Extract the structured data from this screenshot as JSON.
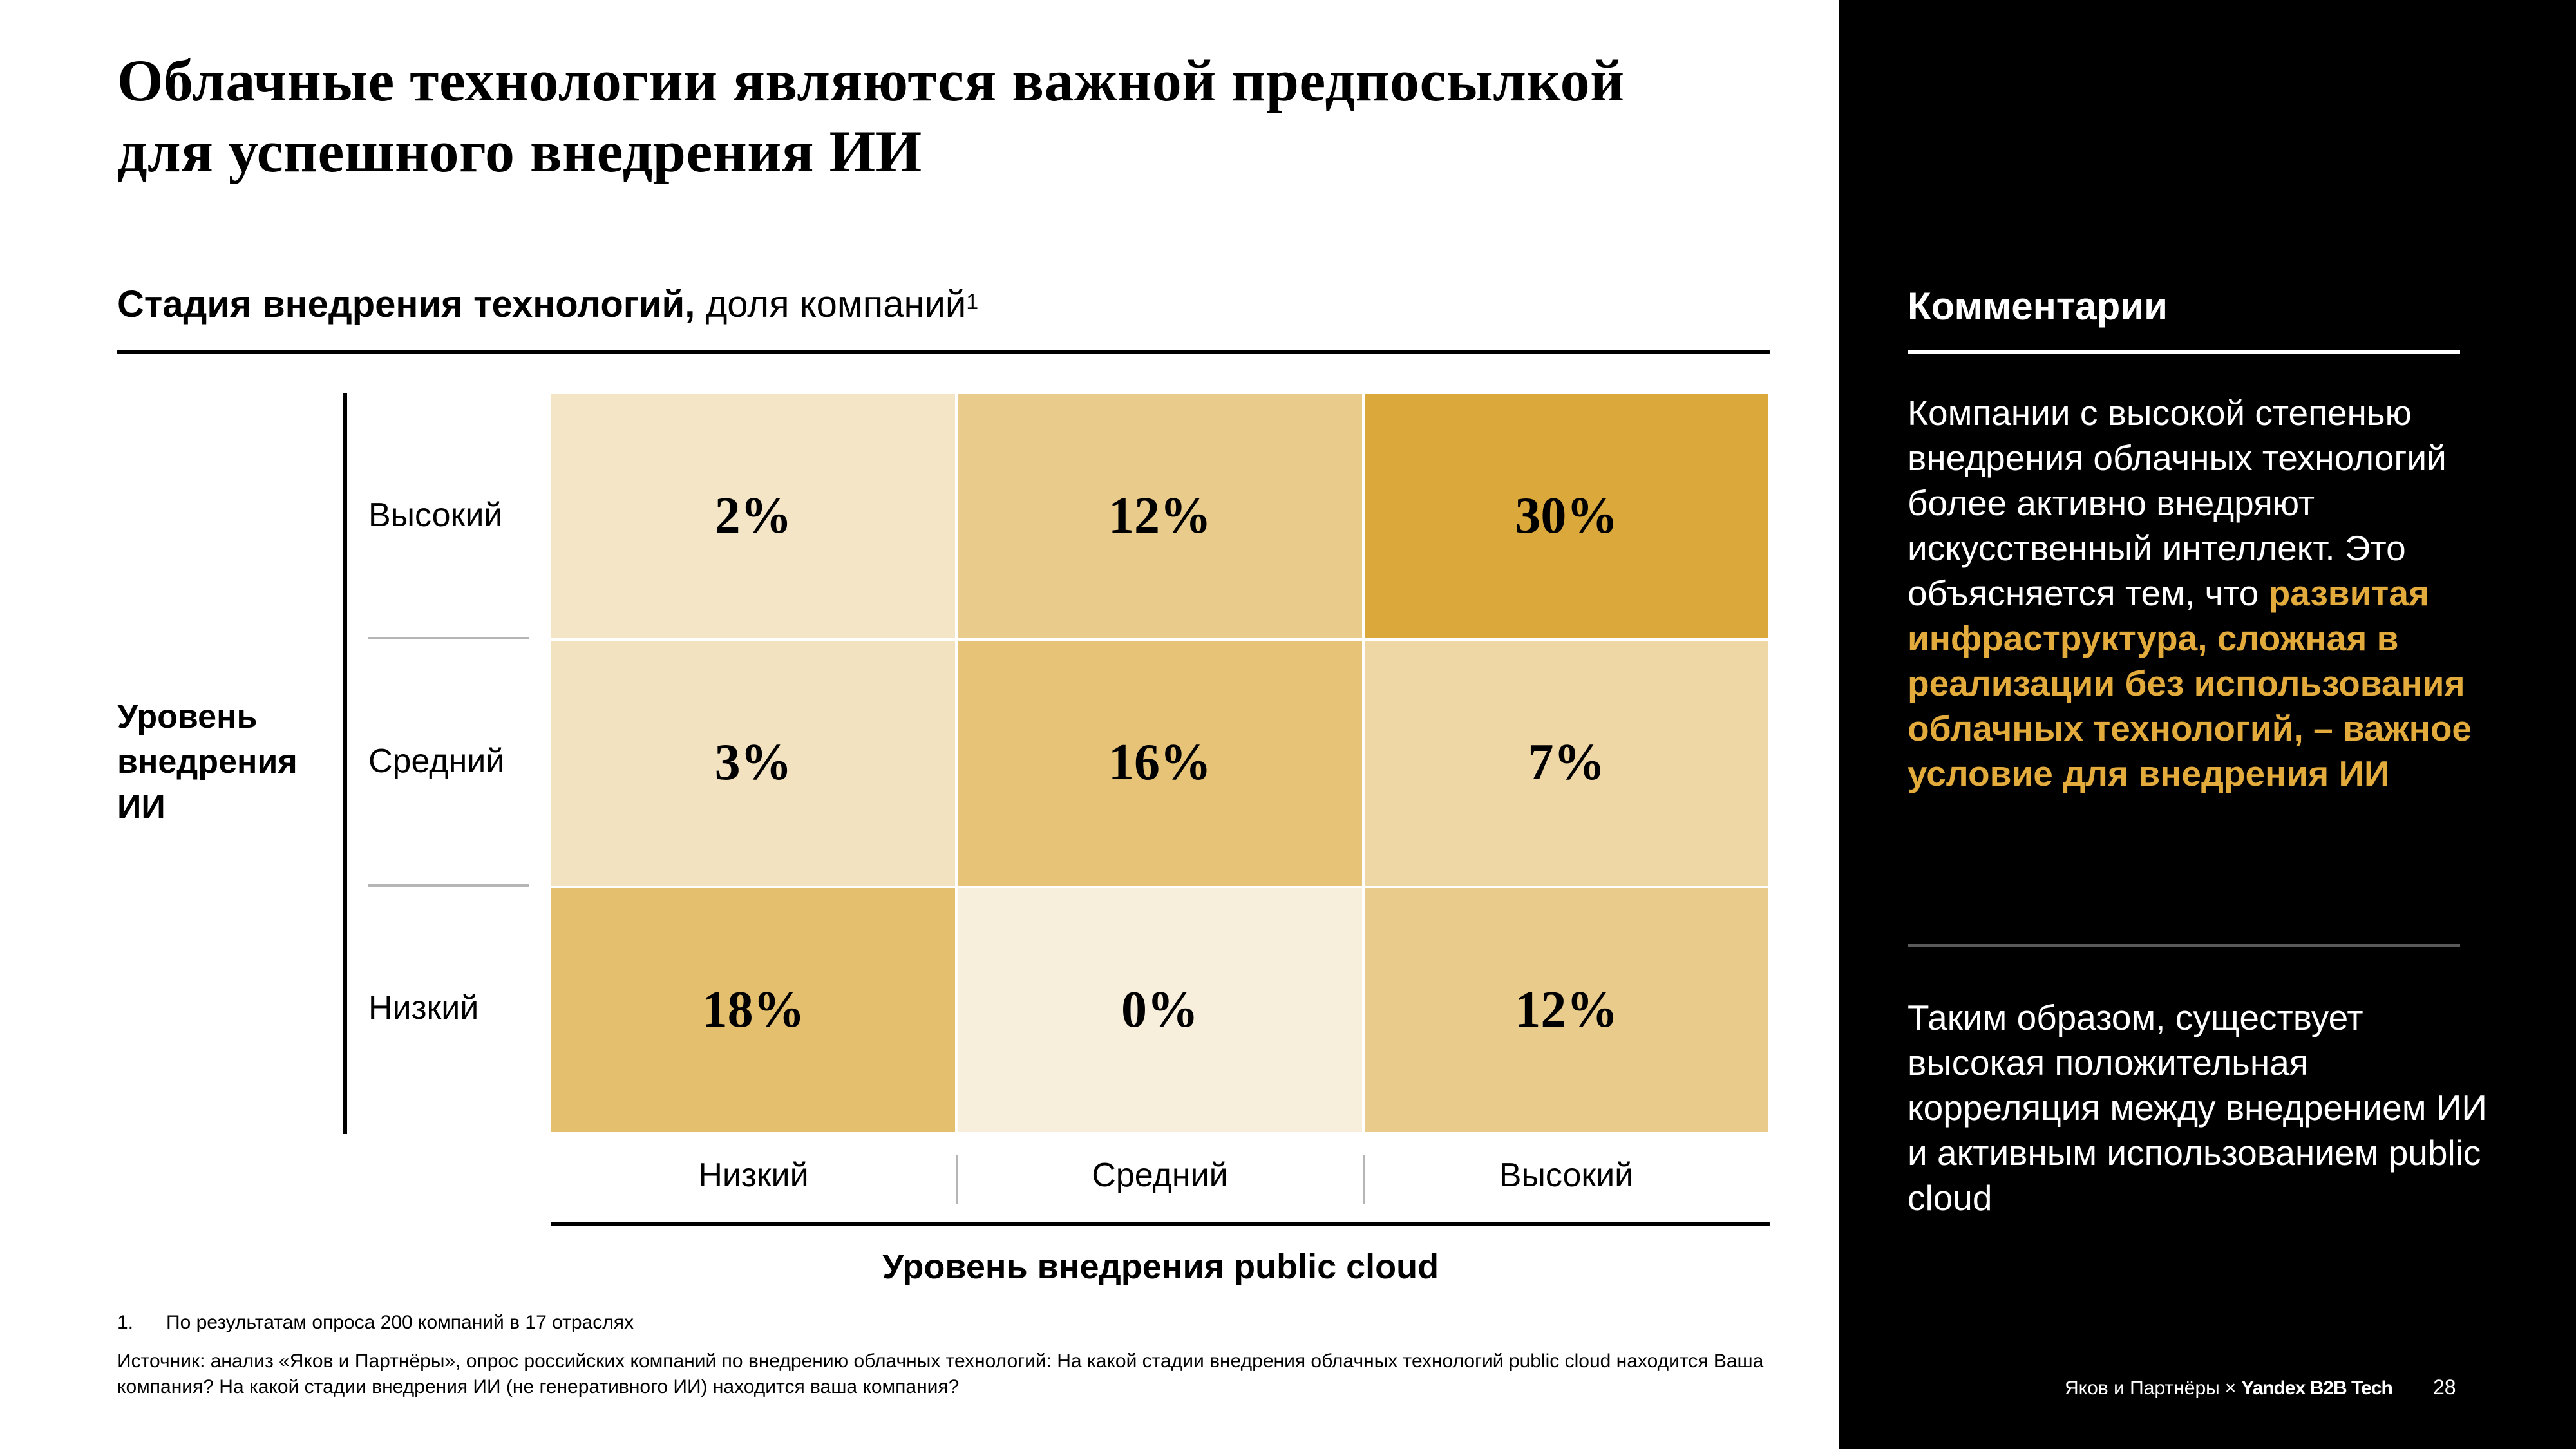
{
  "title": "Облачные технологии являются важной предпосылкой для успешного внедрения ИИ",
  "subtitle": {
    "bold": "Стадия внедрения технологий,",
    "regular": " доля компаний",
    "footnote_ref": "1"
  },
  "chart_data": {
    "type": "heatmap",
    "title": "Стадия внедрения технологий, доля компаний",
    "xlabel": "Уровень внедрения public cloud",
    "ylabel": "Уровень внедрения ИИ",
    "x_categories": [
      "Низкий",
      "Средний",
      "Высокий"
    ],
    "y_categories": [
      "Высокий",
      "Средний",
      "Низкий"
    ],
    "unit": "%",
    "values": [
      [
        2,
        12,
        30
      ],
      [
        3,
        16,
        7
      ],
      [
        18,
        0,
        12
      ]
    ],
    "labels": [
      [
        "2%",
        "12%",
        "30%"
      ],
      [
        "3%",
        "16%",
        "7%"
      ],
      [
        "18%",
        "0%",
        "12%"
      ]
    ],
    "color_scale": {
      "low": "#f7eedb",
      "high": "#dba93b"
    }
  },
  "footnote": {
    "number": "1.",
    "text": "По результатам опроса 200 компаний в 17 отраслях"
  },
  "source": "Источник: анализ «Яков и Партнёры», опрос российских компаний по внедрению облачных технологий: На какой стадии внедрения облачных технологий public cloud находится Ваша компания? На какой стадии внедрения ИИ (не генеративного ИИ) находится ваша компания?",
  "panel": {
    "title": "Комментарии",
    "p1_regular": "Компании с высокой степенью внедрения облачных технологий более активно внедряют искусственный интеллект. Это объясняется тем, что ",
    "p1_highlight": "развитая инфраструктура, сложная в реализации без использования облачных технологий, – важное условие для внедрения ИИ",
    "p2": "Таким образом, существует высокая положительная корреляция между внедрением ИИ и активным использованием public cloud",
    "highlight_color": "#e3ab3c"
  },
  "brand": {
    "left": "Яков и Партнёры",
    "separator": "×",
    "right": "Yandex B2B Tech"
  },
  "page_number": "28"
}
